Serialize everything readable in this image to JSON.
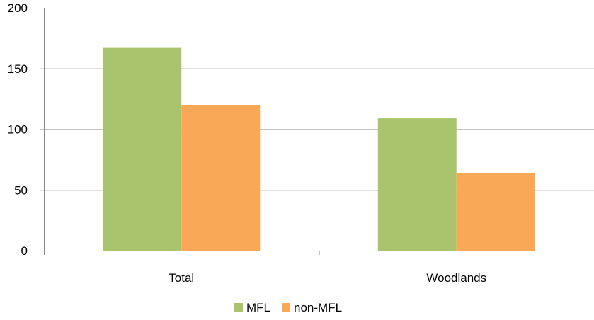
{
  "chart_data": {
    "type": "bar",
    "categories": [
      "Total",
      "Woodlands"
    ],
    "series": [
      {
        "name": "MFL",
        "values": [
          167,
          109
        ],
        "color": "#a9c46c"
      },
      {
        "name": "non-MFL",
        "values": [
          120,
          64
        ],
        "color": "#f9a857"
      }
    ],
    "ylim": [
      0,
      200
    ],
    "yticks": [
      "0",
      "50",
      "100",
      "150",
      "200"
    ],
    "grid": true,
    "legend_position": "bottom"
  }
}
